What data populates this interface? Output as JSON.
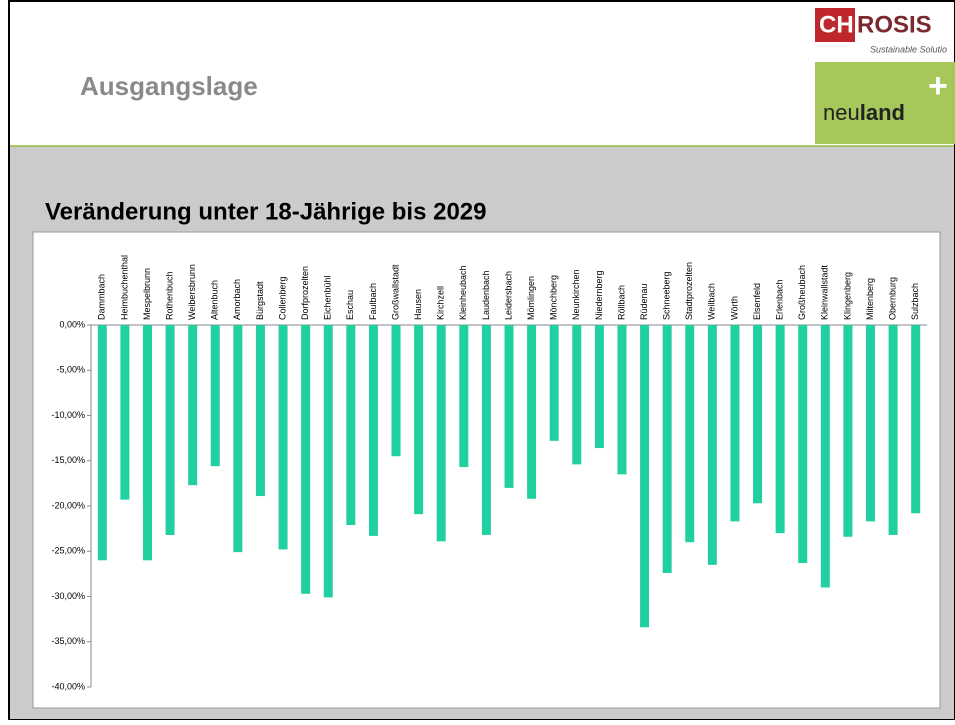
{
  "header": {
    "title": "Ausgangslage"
  },
  "logo": {
    "brand_a": "CH",
    "brand_b": "ROSIS",
    "tagline": "Sustainable Solutio",
    "neu": "neu",
    "land": "land",
    "plus": "+"
  },
  "chart_data": {
    "type": "bar",
    "title": "Veränderung unter 18-Jährige bis 2029",
    "categories": [
      "Dammbach",
      "Heimbuchenthal",
      "Mespelbrunn",
      "Rothenbuch",
      "Weibersbrunn",
      "Altenbuch",
      "Amorbach",
      "Bürgstadt",
      "Collenberg",
      "Dorfprozelten",
      "Eichenbühl",
      "Eschau",
      "Faulbach",
      "Großwallstadt",
      "Hausen",
      "Kirchzell",
      "Kleinheubach",
      "Laudenbach",
      "Leidersbach",
      "Mömlingen",
      "Mönchberg",
      "Neunkirchen",
      "Niedernberg",
      "Röllbach",
      "Rüdenau",
      "Schneeberg",
      "Stadtprozelten",
      "Weilbach",
      "Wörth",
      "Elsenfeld",
      "Erlenbach",
      "Großheubach",
      "Kleinwallstadt",
      "Klingenberg",
      "Miltenberg",
      "Obernburg",
      "Sulzbach"
    ],
    "values": [
      -26.0,
      -19.3,
      -26.0,
      -23.2,
      -17.7,
      -15.6,
      -25.1,
      -18.9,
      -24.8,
      -29.7,
      -30.1,
      -22.1,
      -23.3,
      -14.5,
      -20.9,
      -23.9,
      -15.7,
      -23.2,
      -18.0,
      -19.2,
      -12.8,
      -15.4,
      -13.6,
      -16.5,
      -33.4,
      -27.4,
      -24.0,
      -26.5,
      -21.7,
      -19.7,
      -23.0,
      -26.3,
      -29.0,
      -23.4,
      -21.7,
      -23.2,
      -20.8
    ],
    "color": "#20d0a0",
    "ylim": [
      -40,
      0
    ],
    "yticks": [
      {
        "value": 0,
        "label": "0,00%"
      },
      {
        "value": -5,
        "label": "-5,00%"
      },
      {
        "value": -10,
        "label": "-10,00%"
      },
      {
        "value": -15,
        "label": "-15,00%"
      },
      {
        "value": -20,
        "label": "-20,00%"
      },
      {
        "value": -25,
        "label": "-25,00%"
      },
      {
        "value": -30,
        "label": "-30,00%"
      },
      {
        "value": -35,
        "label": "-35,00%"
      },
      {
        "value": -40,
        "label": "-40,00%"
      }
    ]
  }
}
